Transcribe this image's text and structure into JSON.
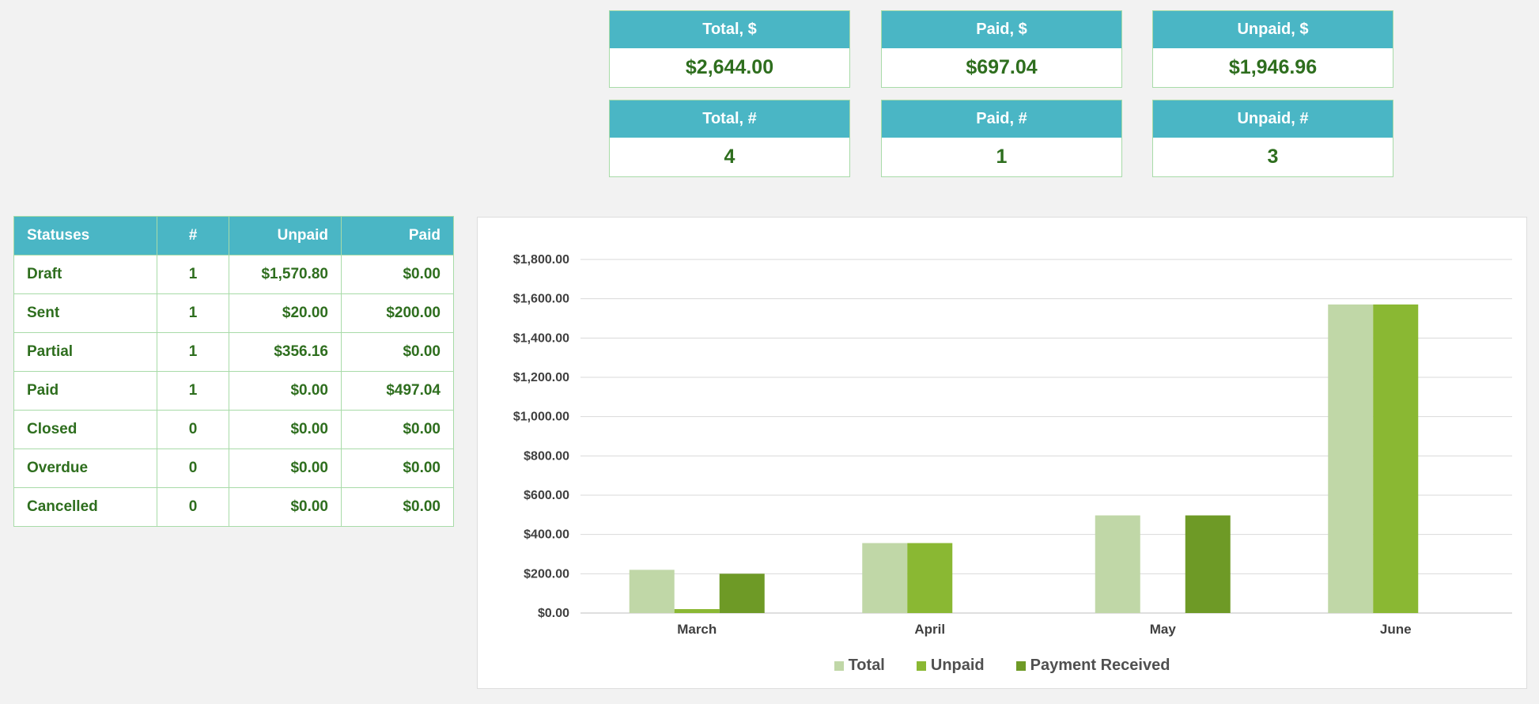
{
  "kpis": {
    "total_amount": {
      "label": "Total, $",
      "value": "$2,644.00"
    },
    "paid_amount": {
      "label": "Paid, $",
      "value": "$697.04"
    },
    "unpaid_amount": {
      "label": "Unpaid, $",
      "value": "$1,946.96"
    },
    "total_count": {
      "label": "Total, #",
      "value": "4"
    },
    "paid_count": {
      "label": "Paid, #",
      "value": "1"
    },
    "unpaid_count": {
      "label": "Unpaid, #",
      "value": "3"
    }
  },
  "status_table": {
    "headers": [
      "Statuses",
      "#",
      "Unpaid",
      "Paid"
    ],
    "rows": [
      [
        "Draft",
        "1",
        "$1,570.80",
        "$0.00"
      ],
      [
        "Sent",
        "1",
        "$20.00",
        "$200.00"
      ],
      [
        "Partial",
        "1",
        "$356.16",
        "$0.00"
      ],
      [
        "Paid",
        "1",
        "$0.00",
        "$497.04"
      ],
      [
        "Closed",
        "0",
        "$0.00",
        "$0.00"
      ],
      [
        "Overdue",
        "0",
        "$0.00",
        "$0.00"
      ],
      [
        "Cancelled",
        "0",
        "$0.00",
        "$0.00"
      ]
    ]
  },
  "colors": {
    "header_bg": "#4ab6c5",
    "value_text": "#2e6e1e",
    "border": "#a8dba8",
    "series_total": "#c0d7a7",
    "series_unpaid": "#8ab833",
    "series_payment": "#6e9a26"
  },
  "chart_data": {
    "type": "bar",
    "categories": [
      "March",
      "April",
      "May",
      "June"
    ],
    "series": [
      {
        "name": "Total",
        "values": [
          220.0,
          356.16,
          497.04,
          1570.8
        ],
        "color": "#c0d7a7"
      },
      {
        "name": "Unpaid",
        "values": [
          20.0,
          356.16,
          0,
          1570.8
        ],
        "color": "#8ab833"
      },
      {
        "name": "Payment Received",
        "values": [
          200.0,
          0,
          497.04,
          0
        ],
        "color": "#6e9a26"
      }
    ],
    "ylim": [
      0,
      1800
    ],
    "yticks": [
      "$0.00",
      "$200.00",
      "$400.00",
      "$600.00",
      "$800.00",
      "$1,000.00",
      "$1,200.00",
      "$1,400.00",
      "$1,600.00",
      "$1,800.00"
    ],
    "grid": true,
    "legend": "bottom",
    "title": "",
    "xlabel": "",
    "ylabel": ""
  }
}
